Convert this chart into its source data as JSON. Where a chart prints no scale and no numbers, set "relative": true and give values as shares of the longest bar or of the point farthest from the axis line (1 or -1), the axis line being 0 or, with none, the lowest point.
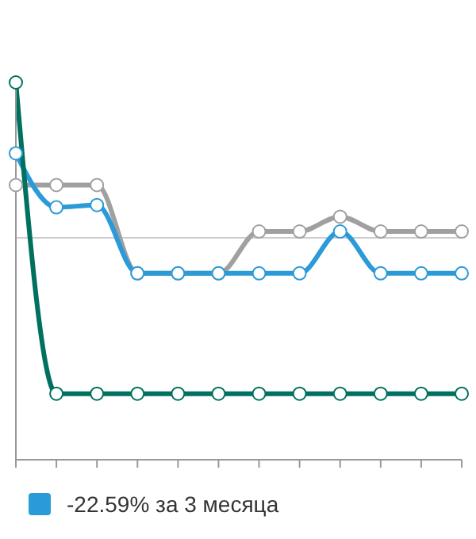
{
  "chart_data": {
    "type": "line",
    "relative": true,
    "categories": [
      null,
      null,
      null,
      null,
      null,
      null,
      null,
      null,
      null,
      null,
      null,
      null
    ],
    "series": [
      {
        "color": "#a0a0a0",
        "values": [
          0.728,
          0.728,
          0.728,
          0.494,
          0.494,
          0.494,
          0.605,
          0.605,
          0.644,
          0.605,
          0.605,
          0.605
        ]
      },
      {
        "name": "-22.59% за 3 месяца",
        "color": "#2a9ad8",
        "values": [
          0.812,
          0.669,
          0.675,
          0.494,
          0.494,
          0.494,
          0.494,
          0.494,
          0.605,
          0.494,
          0.494,
          0.494
        ]
      },
      {
        "color": "#00705f",
        "values": [
          1.0,
          0.175,
          0.175,
          0.175,
          0.175,
          0.175,
          0.175,
          0.175,
          0.175,
          0.175,
          0.175,
          0.175
        ]
      }
    ],
    "ref_lines": [
      {
        "axis": "y",
        "value": 0.588,
        "color": "#cccccc"
      }
    ],
    "marker": "circle",
    "legend": "bottom",
    "grid": false
  }
}
